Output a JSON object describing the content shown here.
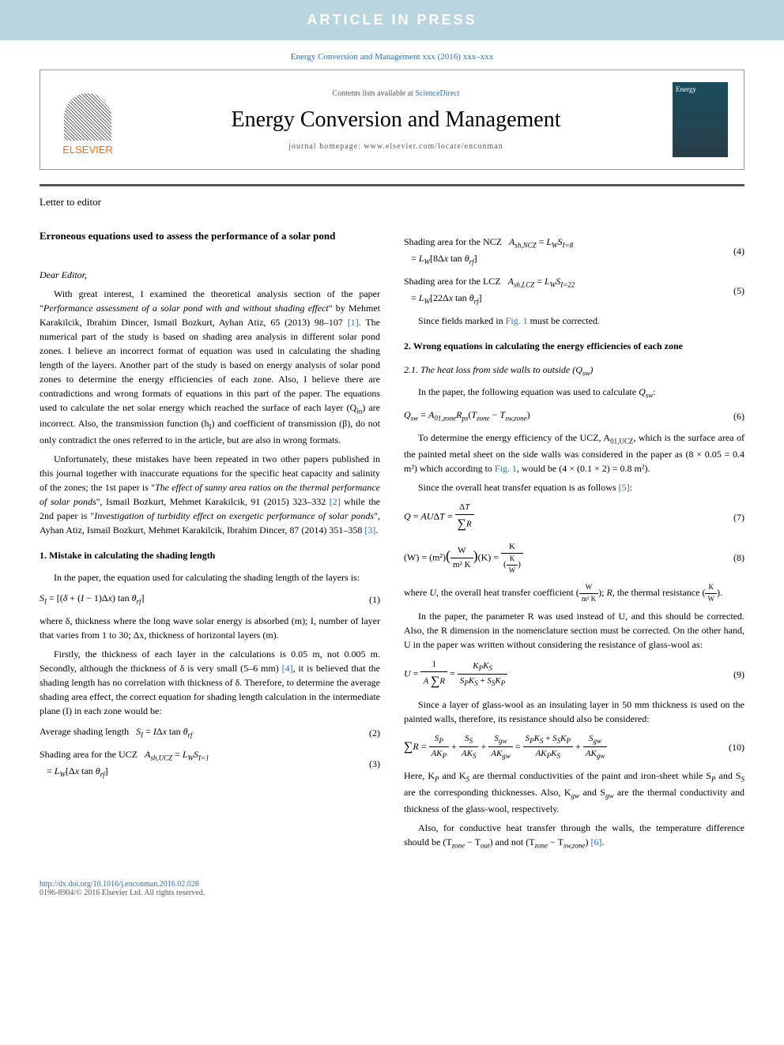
{
  "banner": "ARTICLE IN PRESS",
  "journal_ref": "Energy Conversion and Management xxx (2016) xxx–xxx",
  "header": {
    "elsevier": "ELSEVIER",
    "contents_prefix": "Contents lists available at ",
    "contents_link": "ScienceDirect",
    "journal_title": "Energy Conversion and Management",
    "homepage": "journal homepage: www.elsevier.com/locate/enconman",
    "cover_label": "Energy"
  },
  "section_label": "Letter to editor",
  "article_title": "Erroneous equations used to assess the performance of a solar pond",
  "salutation": "Dear Editor,",
  "p1_a": "With great interest, I examined the theoretical analysis section of the paper \"",
  "p1_b": "Performance assessment of a solar pond with and without shading effect",
  "p1_c": "\" by Mehmet Karakilcik, Ibrahim Dincer, Ismail Bozkurt, Ayhan Atiz, 65 (2013) 98–107 ",
  "p1_ref1": "[1]",
  "p1_d": ". The numerical part of the study is based on shading area analysis in different solar pond zones. I believe an incorrect format of equation was used in calculating the shading length of the layers. Another part of the study is based on energy analysis of solar pond zones to determine the energy efficiencies of each zone. Also, I believe there are contradictions and wrong formats of equations in this part of the paper. The equations used to calculate the net solar energy which reached the surface of each layer (Q",
  "p1_sub": "in",
  "p1_e": ") are incorrect. Also, the transmission function (h",
  "p1_sub2": "I",
  "p1_f": ") and coefficient of transmission (β), do not only contradict the ones referred to in the article, but are also in wrong formats.",
  "p2_a": "Unfortunately, these mistakes have been repeated in two other papers published in this journal together with inaccurate equations for the specific heat capacity and salinity of the zones; the 1st paper is \"",
  "p2_b": "The effect of sunny area ratios on the thermal performance of solar ponds",
  "p2_c": "\", Ismail Bozkurt, Mehmet Karakilcik, 91 (2015) 323–332 ",
  "p2_ref2": "[2]",
  "p2_d": " while the 2nd paper is \"",
  "p2_e": "Investigation of turbidity effect on exergetic performance of solar ponds",
  "p2_f": "\", Ayhan Atiz, Ismail Bozkurt, Mehmet Karakilcik, Ibrahim Dincer, 87 (2014) 351–358 ",
  "p2_ref3": "[3]",
  "p2_g": ".",
  "sec1": "1. Mistake in calculating the shading length",
  "s1_p1": "In the paper, the equation used for calculating the shading length of the layers is:",
  "eq1": {
    "body": "S_I = [(δ + (I − 1)Δx) tan θ_rf]",
    "num": "(1)"
  },
  "s1_p2": "where δ, thickness where the long wave solar energy is absorbed (m); I, number of layer that varies from 1 to 30; Δx, thickness of horizontal layers (m).",
  "s1_p3_a": "Firstly, the thickness of each layer in the calculations is 0.05 m, not 0.005 m. Secondly, although the thickness of δ is very small (5–6 mm) ",
  "s1_ref4": "[4]",
  "s1_p3_b": ", it is believed that the shading length has no correlation with thickness of δ. Therefore, to determine the average shading area effect, the correct equation for shading length calculation in the intermediate plane (I) in each zone would be:",
  "eq2": {
    "label": "Average shading length",
    "body": "S_I = IΔx tan θ_rf",
    "num": "(2)"
  },
  "eq3": {
    "label": "Shading area for the UCZ",
    "body": "A_sh,UCZ = L_W S_I=1",
    "body2": "= L_W[Δx tan θ_rf]",
    "num": "(3)"
  },
  "eq4": {
    "label": "Shading area for the NCZ",
    "body": "A_sh,NCZ = L_W S_I=8",
    "body2": "= L_W[8Δx tan θ_rf]",
    "num": "(4)"
  },
  "eq5": {
    "label": "Shading area for the LCZ",
    "body": "A_sh,LCZ = L_W S_I=22",
    "body2": "= L_W[22Δx tan θ_rf]",
    "num": "(5)"
  },
  "col2_p1_a": "Since fields marked in ",
  "col2_fig1": "Fig. 1",
  "col2_p1_b": " must be corrected.",
  "sec2": "2. Wrong equations in calculating the energy efficiencies of each zone",
  "subsec21": "2.1. The heat loss from side walls to outside (Q_sw)",
  "s21_p1": "In the paper, the following equation was used to calculate Q_sw:",
  "eq6": {
    "body": "Q_sw = A_01,zone R_ps (T_zone − T_sw,zone)",
    "num": "(6)"
  },
  "s21_p2_a": "To determine the energy efficiency of the UCZ, A",
  "s21_p2_sub": "01,UCZ",
  "s21_p2_b": ", which is the surface area of the painted metal sheet on the side walls was considered in the paper as (8 × 0.05 = 0.4 m²) which according to ",
  "s21_fig1": "Fig. 1",
  "s21_p2_c": ", would be (4 × (0.1 × 2) = 0.8 m²).",
  "s21_p3_a": "Since the overall heat transfer equation is as follows ",
  "s21_ref5": "[5]",
  "s21_p3_b": ":",
  "eq7": {
    "num": "(7)"
  },
  "eq8": {
    "num": "(8)"
  },
  "s21_p4": "where U, the overall heat transfer coefficient (W/m²K); R, the thermal resistance (K/W).",
  "s21_p5": "In the paper, the parameter R was used instead of U, and this should be corrected. Also, the R dimension in the nomenclature section must be corrected. On the other hand, U in the paper was written without considering the resistance of glass-wool as:",
  "eq9": {
    "num": "(9)"
  },
  "s21_p6": "Since a layer of glass-wool as an insulating layer in 50 mm thickness is used on the painted walls, therefore, its resistance should also be considered:",
  "eq10": {
    "num": "(10)"
  },
  "s21_p7_a": "Here, K",
  "s21_p7_b": " and K",
  "s21_p7_c": " are thermal conductivities of the paint and iron-sheet while S",
  "s21_p7_d": " and S",
  "s21_p7_e": " are the corresponding thicknesses. Also, K",
  "s21_p7_f": " and S",
  "s21_p7_g": " are the thermal conductivity and thickness of the glass-wool, respectively.",
  "s21_p8_a": "Also, for conductive heat transfer through the walls, the temperature difference should be (T",
  "s21_p8_b": " − T",
  "s21_p8_c": ") and not (T",
  "s21_p8_d": " − T",
  "s21_p8_e": ") ",
  "s21_ref6": "[6]",
  "s21_p8_f": ".",
  "doi": {
    "url": "http://dx.doi.org/10.1016/j.enconman.2016.02.028",
    "issn": "0196-8904/© 2016 Elsevier Ltd. All rights reserved."
  },
  "colors": {
    "banner_bg": "#b8d5e0",
    "banner_fg": "#ffffff",
    "link": "#2b6cb0",
    "elsevier": "#ff6b00",
    "divider": "#555555"
  }
}
